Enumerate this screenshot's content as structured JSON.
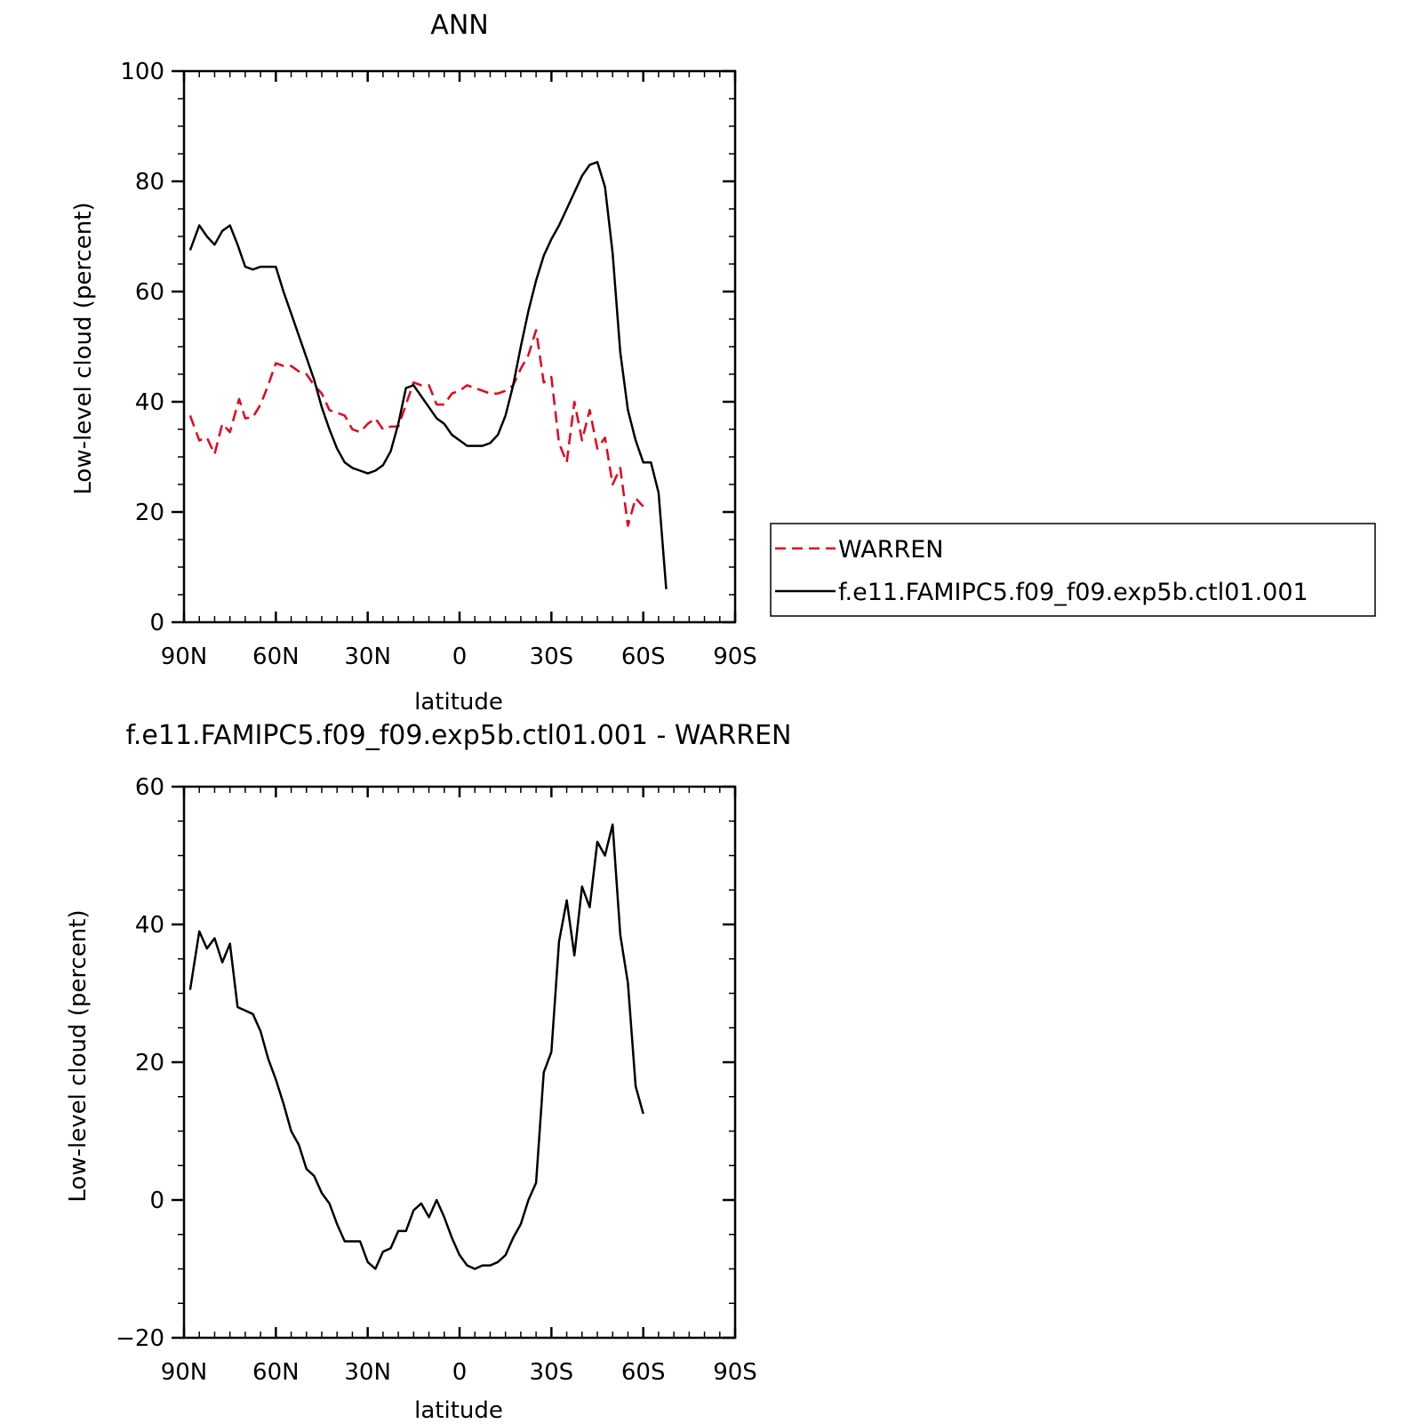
{
  "chart_data": [
    {
      "type": "line",
      "title": "ANN",
      "xlabel": "latitude",
      "ylabel": "Low-level cloud (percent)",
      "xlim": [
        90,
        -90
      ],
      "ylim": [
        0,
        100
      ],
      "x_ticks": [
        {
          "value": 90,
          "label": "90N"
        },
        {
          "value": 60,
          "label": "60N"
        },
        {
          "value": 30,
          "label": "30N"
        },
        {
          "value": 0,
          "label": "0"
        },
        {
          "value": -30,
          "label": "30S"
        },
        {
          "value": -60,
          "label": "60S"
        },
        {
          "value": -90,
          "label": "90S"
        }
      ],
      "y_ticks": [
        {
          "value": 0,
          "label": "0"
        },
        {
          "value": 20,
          "label": "20"
        },
        {
          "value": 40,
          "label": "40"
        },
        {
          "value": 60,
          "label": "60"
        },
        {
          "value": 80,
          "label": "80"
        },
        {
          "value": 100,
          "label": "100"
        }
      ],
      "legend": "right",
      "series": [
        {
          "name": "WARREN",
          "color": "#e8001c",
          "style": "dashed",
          "points": [
            [
              88,
              37.5
            ],
            [
              85,
              33
            ],
            [
              82.5,
              33.5
            ],
            [
              80,
              30.5
            ],
            [
              77.5,
              36
            ],
            [
              75,
              34.5
            ],
            [
              72,
              40.5
            ],
            [
              70,
              37
            ],
            [
              67.5,
              37.2
            ],
            [
              65,
              39.5
            ],
            [
              62.5,
              43
            ],
            [
              60,
              47
            ],
            [
              57.5,
              46.5
            ],
            [
              55,
              46.5
            ],
            [
              52.5,
              45.5
            ],
            [
              50,
              45
            ],
            [
              47.5,
              43
            ],
            [
              45,
              41.5
            ],
            [
              42.5,
              38.5
            ],
            [
              40,
              38
            ],
            [
              37.5,
              37.5
            ],
            [
              35,
              35
            ],
            [
              32.5,
              34.5
            ],
            [
              30,
              36
            ],
            [
              27.5,
              37
            ],
            [
              25,
              35
            ],
            [
              22.5,
              35.5
            ],
            [
              20,
              35.5
            ],
            [
              17.5,
              39.5
            ],
            [
              15,
              43.5
            ],
            [
              12.5,
              43
            ],
            [
              10,
              43
            ],
            [
              7.5,
              39.5
            ],
            [
              5,
              39.5
            ],
            [
              2.5,
              41.5
            ],
            [
              0,
              42
            ],
            [
              -2.5,
              43
            ],
            [
              -5,
              42.5
            ],
            [
              -7.5,
              42
            ],
            [
              -10,
              41.5
            ],
            [
              -12.5,
              41.5
            ],
            [
              -15,
              42
            ],
            [
              -17.5,
              43
            ],
            [
              -20,
              46
            ],
            [
              -22.5,
              48.5
            ],
            [
              -25,
              53
            ],
            [
              -27.5,
              43.5
            ],
            [
              -30,
              44.5
            ],
            [
              -32.5,
              32.5
            ],
            [
              -35,
              29
            ],
            [
              -37.5,
              40
            ],
            [
              -40,
              33
            ],
            [
              -42.5,
              38.5
            ],
            [
              -45,
              31.5
            ],
            [
              -47.5,
              33.5
            ],
            [
              -50,
              25
            ],
            [
              -52.5,
              28
            ],
            [
              -55,
              17.5
            ],
            [
              -57.5,
              22.5
            ],
            [
              -60,
              21
            ]
          ]
        },
        {
          "name": "f.e11.FAMIPC5.f09_f09.exp5b.ctl01.001",
          "color": "#000000",
          "style": "solid",
          "points": [
            [
              88,
              67.5
            ],
            [
              85,
              72
            ],
            [
              82.5,
              70
            ],
            [
              80,
              68.5
            ],
            [
              77.5,
              71
            ],
            [
              75,
              72
            ],
            [
              72.5,
              68.5
            ],
            [
              70,
              64.5
            ],
            [
              67.5,
              64
            ],
            [
              65,
              64.5
            ],
            [
              62.5,
              64.5
            ],
            [
              60,
              64.5
            ],
            [
              57.5,
              60
            ],
            [
              55,
              56
            ],
            [
              52.5,
              52
            ],
            [
              50,
              48
            ],
            [
              47.5,
              44
            ],
            [
              45,
              39
            ],
            [
              42.5,
              35
            ],
            [
              40,
              31.5
            ],
            [
              37.5,
              29
            ],
            [
              35,
              28
            ],
            [
              32.5,
              27.5
            ],
            [
              30,
              27
            ],
            [
              27.5,
              27.5
            ],
            [
              25,
              28.5
            ],
            [
              22.5,
              31
            ],
            [
              20,
              36
            ],
            [
              17.5,
              42.5
            ],
            [
              15,
              43
            ],
            [
              12.5,
              41
            ],
            [
              10,
              39
            ],
            [
              7.5,
              37
            ],
            [
              5,
              36
            ],
            [
              2.5,
              34
            ],
            [
              0,
              33
            ],
            [
              -2.5,
              32
            ],
            [
              -5,
              32
            ],
            [
              -7.5,
              32
            ],
            [
              -10,
              32.5
            ],
            [
              -12.5,
              34
            ],
            [
              -15,
              37.5
            ],
            [
              -17.5,
              43
            ],
            [
              -20,
              50
            ],
            [
              -22.5,
              56.5
            ],
            [
              -25,
              62
            ],
            [
              -27.5,
              66.5
            ],
            [
              -30,
              69.5
            ],
            [
              -32.5,
              72
            ],
            [
              -35,
              75
            ],
            [
              -37.5,
              78
            ],
            [
              -40,
              81
            ],
            [
              -42.5,
              83
            ],
            [
              -45,
              83.5
            ],
            [
              -47.5,
              79
            ],
            [
              -50,
              67
            ],
            [
              -52.5,
              49
            ],
            [
              -55,
              38.5
            ],
            [
              -57.5,
              33
            ],
            [
              -60,
              29
            ],
            [
              -62.5,
              29
            ],
            [
              -65,
              23.5
            ],
            [
              -67.5,
              6
            ]
          ]
        }
      ]
    },
    {
      "type": "line",
      "title": "f.e11.FAMIPC5.f09_f09.exp5b.ctl01.001 - WARREN",
      "xlabel": "latitude",
      "ylabel": "Low-level cloud (percent)",
      "xlim": [
        90,
        -90
      ],
      "ylim": [
        -20,
        60
      ],
      "x_ticks": [
        {
          "value": 90,
          "label": "90N"
        },
        {
          "value": 60,
          "label": "60N"
        },
        {
          "value": 30,
          "label": "30N"
        },
        {
          "value": 0,
          "label": "0"
        },
        {
          "value": -30,
          "label": "30S"
        },
        {
          "value": -60,
          "label": "60S"
        },
        {
          "value": -90,
          "label": "90S"
        }
      ],
      "y_ticks": [
        {
          "value": -20,
          "label": "−20"
        },
        {
          "value": 0,
          "label": "0"
        },
        {
          "value": 20,
          "label": "20"
        },
        {
          "value": 40,
          "label": "40"
        },
        {
          "value": 60,
          "label": "60"
        }
      ],
      "series": [
        {
          "color": "#000000",
          "style": "solid",
          "points": [
            [
              88,
              30.5
            ],
            [
              85,
              39
            ],
            [
              82.5,
              36.5
            ],
            [
              80,
              38
            ],
            [
              77.5,
              34.5
            ],
            [
              75,
              37.2
            ],
            [
              72.5,
              28
            ],
            [
              70,
              27.5
            ],
            [
              67.5,
              27
            ],
            [
              65,
              24.5
            ],
            [
              62.5,
              20.5
            ],
            [
              60,
              17.5
            ],
            [
              57.5,
              14
            ],
            [
              55,
              10
            ],
            [
              52.5,
              8
            ],
            [
              50,
              4.5
            ],
            [
              47.5,
              3.5
            ],
            [
              45,
              1
            ],
            [
              42.5,
              -0.5
            ],
            [
              40,
              -3.5
            ],
            [
              37.5,
              -6
            ],
            [
              35,
              -6
            ],
            [
              32.5,
              -6
            ],
            [
              30,
              -9
            ],
            [
              27.5,
              -10
            ],
            [
              25,
              -7.5
            ],
            [
              22.5,
              -7
            ],
            [
              20,
              -4.5
            ],
            [
              17.5,
              -4.5
            ],
            [
              15,
              -1.5
            ],
            [
              12.5,
              -0.5
            ],
            [
              10,
              -2.5
            ],
            [
              7.5,
              0
            ],
            [
              5,
              -2.5
            ],
            [
              2.5,
              -5.5
            ],
            [
              0,
              -8
            ],
            [
              -2.5,
              -9.5
            ],
            [
              -5,
              -10
            ],
            [
              -7.5,
              -9.5
            ],
            [
              -10,
              -9.5
            ],
            [
              -12.5,
              -9
            ],
            [
              -15,
              -8
            ],
            [
              -17.5,
              -5.5
            ],
            [
              -20,
              -3.5
            ],
            [
              -22.5,
              0
            ],
            [
              -25,
              2.5
            ],
            [
              -27.5,
              18.5
            ],
            [
              -30,
              21.5
            ],
            [
              -32.5,
              37.5
            ],
            [
              -35,
              43.5
            ],
            [
              -37.5,
              35.5
            ],
            [
              -40,
              45.5
            ],
            [
              -42.5,
              42.5
            ],
            [
              -45,
              52
            ],
            [
              -47.5,
              50
            ],
            [
              -50,
              54.5
            ],
            [
              -52.5,
              38.5
            ],
            [
              -55,
              31.5
            ],
            [
              -57.5,
              16.5
            ],
            [
              -60,
              12.5
            ]
          ]
        }
      ]
    }
  ]
}
